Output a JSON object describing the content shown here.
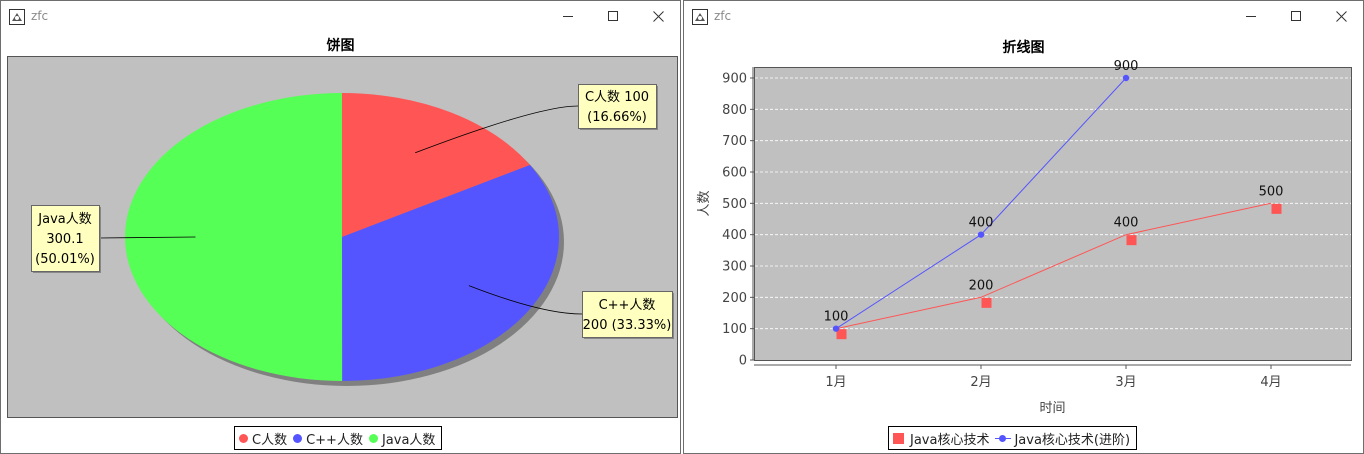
{
  "windows": {
    "left": {
      "title": "zfc"
    },
    "right": {
      "title": "zfc"
    }
  },
  "colors": {
    "plot_bg": "#c0c0c0",
    "label_bg": "#ffffc0",
    "c": "#ff5555",
    "cpp": "#5555ff",
    "java": "#55ff55",
    "line1": "#ff5555",
    "line2": "#5555ff"
  },
  "chart_data": [
    {
      "type": "pie",
      "title": "饼图",
      "slices": [
        {
          "name": "C人数",
          "value": 100,
          "percent": "16.66%",
          "label_line1": "C人数 100",
          "label_line2": "(16.66%)",
          "color": "#ff5555"
        },
        {
          "name": "C++人数",
          "value": 200,
          "percent": "33.33%",
          "label_line1": "C++人数",
          "label_line2": "200 (33.33%)",
          "color": "#5555ff"
        },
        {
          "name": "Java人数",
          "value": 300.1,
          "percent": "50.01%",
          "label_line1": "Java人数",
          "label_line2": "300.1",
          "label_line3": "(50.01%)",
          "color": "#55ff55"
        }
      ],
      "legend": [
        "C人数",
        "C++人数",
        "Java人数"
      ],
      "legend_position": "bottom"
    },
    {
      "type": "line",
      "title": "折线图",
      "xlabel": "时间",
      "ylabel": "人数",
      "categories": [
        "1月",
        "2月",
        "3月",
        "4月"
      ],
      "ylim": [
        0,
        900
      ],
      "yticks": [
        0,
        100,
        200,
        300,
        400,
        500,
        600,
        700,
        800,
        900
      ],
      "grid": true,
      "series": [
        {
          "name": "Java核心技术",
          "values": [
            100,
            200,
            400,
            500
          ],
          "marker": "square",
          "color": "#ff5555"
        },
        {
          "name": "Java核心技术(进阶)",
          "values": [
            100,
            400,
            900,
            null
          ],
          "marker": "circle",
          "color": "#5555ff"
        }
      ],
      "legend_position": "bottom"
    }
  ]
}
